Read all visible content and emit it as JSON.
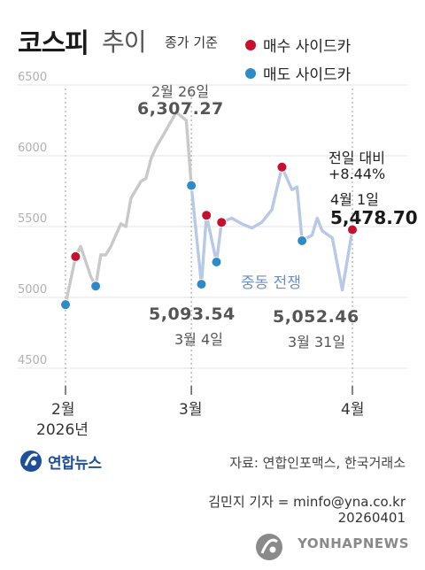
{
  "header": {
    "title_main": "코스피",
    "title_sub": "추이",
    "title_note": "종가 기준"
  },
  "legend": [
    {
      "label": "매수 사이드카",
      "color": "#c8102e"
    },
    {
      "label": "매도 사이드카",
      "color": "#2e8bc9"
    }
  ],
  "annotations": {
    "peak_date": "2월 26일",
    "peak_value": "6,307.27",
    "low1_value": "5,093.54",
    "low1_date": "3월 4일",
    "low2_value": "5,052.46",
    "low2_date": "3월 31일",
    "change_label": "전일 대비",
    "change_value": "+8.44%",
    "last_date": "4월 1일",
    "last_value": "5,478.70",
    "mideast": "중동 전쟁"
  },
  "chart_data": {
    "type": "line",
    "ylim": [
      4500,
      6500
    ],
    "yticks": [
      4500,
      5000,
      5500,
      6000,
      6500
    ],
    "ytick_labels": [
      "4500",
      "5000",
      "5500",
      "6000",
      "6500"
    ],
    "xticks": [
      {
        "label": "2월",
        "year": "2026년",
        "index": 0
      },
      {
        "label": "3월",
        "index": 25
      },
      {
        "label": "4월",
        "index": 57
      }
    ],
    "line_color": "#c9c9c9",
    "after_war_color": "#b7c9e6",
    "war_start_index": 26,
    "values": [
      4949,
      5288,
      5360,
      5150,
      5080,
      5300,
      5300,
      5360,
      5520,
      5500,
      5700,
      5820,
      5840,
      5980,
      6060,
      6120,
      6307,
      6250,
      5790,
      5093,
      5580,
      5250,
      5530,
      5560,
      5520,
      5490,
      5530,
      5620,
      5920,
      5760,
      5780,
      5400,
      5440,
      5560,
      5470,
      5420,
      5052,
      5478
    ],
    "index_positions": [
      0,
      2,
      3,
      5,
      6,
      7,
      8,
      9,
      11,
      12,
      13,
      15,
      16,
      17,
      18,
      19,
      22,
      24,
      25,
      27,
      28,
      30,
      31,
      33,
      35,
      37,
      39,
      41,
      43,
      45,
      46,
      47,
      49,
      50,
      51,
      53,
      55,
      57
    ],
    "buy_sidecar": [
      {
        "index": 2,
        "value": 5288
      },
      {
        "index": 28,
        "value": 5580
      },
      {
        "index": 31,
        "value": 5530
      },
      {
        "index": 43,
        "value": 5920
      },
      {
        "index": 57,
        "value": 5478
      }
    ],
    "sell_sidecar": [
      {
        "index": 0,
        "value": 4949
      },
      {
        "index": 6,
        "value": 5080
      },
      {
        "index": 25,
        "value": 5790
      },
      {
        "index": 27,
        "value": 5093
      },
      {
        "index": 30,
        "value": 5250
      },
      {
        "index": 47,
        "value": 5400
      }
    ],
    "guide_lines": [
      0,
      25,
      57
    ]
  },
  "footer": {
    "source": "자료: 연합인포맥스, 한국거래소",
    "credit": "김민지 기자 = minfo@yna.co.kr",
    "date": "20260401",
    "agency": "연합뉴스",
    "watermark": "YONHAPNEWS"
  }
}
